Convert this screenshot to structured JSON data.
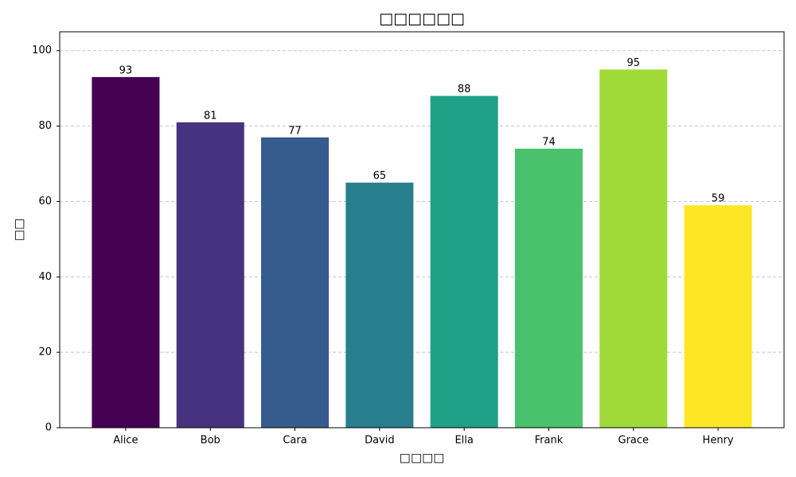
{
  "chart_data": {
    "type": "bar",
    "title": "□□□□□□",
    "x_label": "□□□□",
    "y_label": "□□",
    "categories": [
      "Alice",
      "Bob",
      "Cara",
      "David",
      "Ella",
      "Frank",
      "Grace",
      "Henry"
    ],
    "values": [
      93,
      81,
      77,
      65,
      88,
      74,
      95,
      59
    ],
    "colors": [
      "#440154",
      "#46327e",
      "#365c8d",
      "#277f8e",
      "#1fa187",
      "#4ac16d",
      "#a0da39",
      "#fde725"
    ],
    "ylim": [
      0,
      105
    ],
    "yticks": [
      0,
      20,
      40,
      60,
      80,
      100
    ],
    "grid": true
  }
}
